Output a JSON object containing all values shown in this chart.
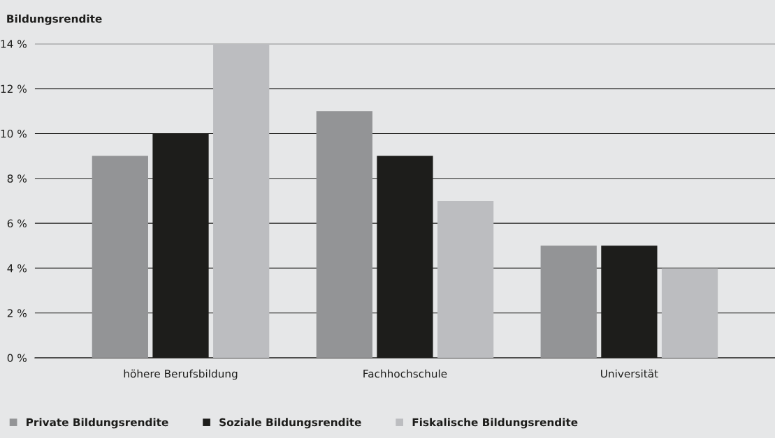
{
  "chart_data": {
    "type": "bar",
    "title": "Bildungsrendite",
    "categories": [
      "höhere Berufsbildung",
      "Fachhochschule",
      "Universität"
    ],
    "series": [
      {
        "name": "Private Bildungsrendite",
        "color": "#939496",
        "values": [
          9,
          11,
          5
        ]
      },
      {
        "name": "Soziale Bildungsrendite",
        "color": "#1d1d1b",
        "values": [
          10,
          9,
          5
        ]
      },
      {
        "name": "Fiskalische Bildungsrendite",
        "color": "#bcbdc0",
        "values": [
          14,
          7,
          4
        ]
      }
    ],
    "ylim": [
      0,
      14
    ],
    "yticks": [
      {
        "value": 0,
        "label": "0 %"
      },
      {
        "value": 2,
        "label": "2 %"
      },
      {
        "value": 4,
        "label": "4 %"
      },
      {
        "value": 6,
        "label": "6 %"
      },
      {
        "value": 8,
        "label": "8 %"
      },
      {
        "value": 10,
        "label": "10 %"
      },
      {
        "value": 12,
        "label": "12 %"
      },
      {
        "value": 14,
        "label": "14 %"
      }
    ],
    "grid": "y",
    "legend": "bottom"
  }
}
